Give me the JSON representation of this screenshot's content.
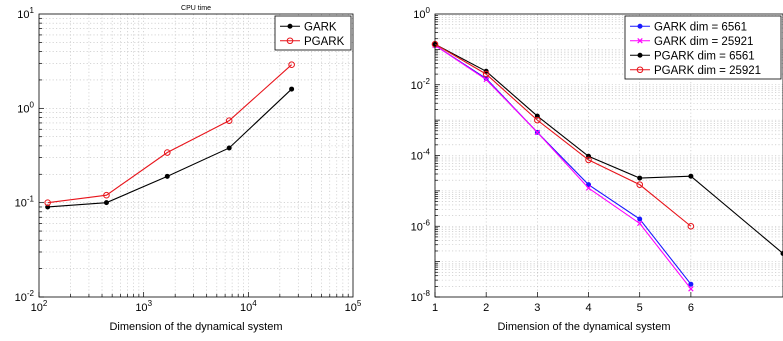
{
  "chart_data": [
    {
      "type": "line",
      "title": "CPU time",
      "xlabel": "Dimension of the dynamical system",
      "ylabel": "",
      "xscale": "log",
      "yscale": "log",
      "xlim": [
        100,
        100000
      ],
      "ylim": [
        0.01,
        10
      ],
      "grid": true,
      "legend_position": "top-right",
      "x_tick_labels": [
        {
          "base": "10",
          "exp": "2",
          "value": 100
        },
        {
          "base": "10",
          "exp": "3",
          "value": 1000
        },
        {
          "base": "10",
          "exp": "4",
          "value": 10000
        },
        {
          "base": "10",
          "exp": "5",
          "value": 100000
        }
      ],
      "y_tick_labels": [
        {
          "base": "10",
          "exp": "-2",
          "value": 0.01
        },
        {
          "base": "10",
          "exp": "-1",
          "value": 0.1
        },
        {
          "base": "10",
          "exp": "0",
          "value": 1
        },
        {
          "base": "10",
          "exp": "1",
          "value": 10
        }
      ],
      "series": [
        {
          "name": "GARK",
          "color": "#000000",
          "marker": "dot",
          "x": [
            121,
            441,
            1681,
            6561,
            25921
          ],
          "y": [
            0.09,
            0.1,
            0.19,
            0.38,
            1.6
          ]
        },
        {
          "name": "PGARK",
          "color": "#e8141b",
          "marker": "circle",
          "x": [
            121,
            441,
            1681,
            6561,
            25921
          ],
          "y": [
            0.1,
            0.12,
            0.34,
            0.74,
            2.9
          ]
        }
      ]
    },
    {
      "type": "line",
      "title": "",
      "xlabel": "Dimension of the dynamical system",
      "ylabel": "",
      "xscale": "linear",
      "yscale": "log",
      "xlim": [
        1,
        7.8
      ],
      "ylim": [
        1e-08,
        1
      ],
      "grid": true,
      "legend_position": "top-right",
      "x_tick_labels": [
        {
          "label": "1",
          "value": 1
        },
        {
          "label": "2",
          "value": 2
        },
        {
          "label": "3",
          "value": 3
        },
        {
          "label": "4",
          "value": 4
        },
        {
          "label": "5",
          "value": 5
        },
        {
          "label": "6",
          "value": 6
        }
      ],
      "y_tick_labels": [
        {
          "base": "10",
          "exp": "-8",
          "value": 1e-08
        },
        {
          "base": "10",
          "exp": "-6",
          "value": 1e-06
        },
        {
          "base": "10",
          "exp": "-4",
          "value": 0.0001
        },
        {
          "base": "10",
          "exp": "-2",
          "value": 0.01
        },
        {
          "base": "10",
          "exp": "0",
          "value": 1
        }
      ],
      "series": [
        {
          "name": "GARK dim = 6561",
          "color": "#1a1aff",
          "marker": "dot",
          "x": [
            1,
            2,
            3,
            4,
            5,
            6
          ],
          "y": [
            0.13,
            0.015,
            0.00045,
            1.5e-05,
            1.6e-06,
            2.3e-08
          ]
        },
        {
          "name": "GARK dim = 25921",
          "color": "#ff00ff",
          "marker": "x",
          "x": [
            1,
            2,
            3,
            4,
            5,
            6
          ],
          "y": [
            0.13,
            0.014,
            0.00045,
            1.2e-05,
            1.2e-06,
            1.7e-08
          ]
        },
        {
          "name": "PGARK dim = 6561",
          "color": "#000000",
          "marker": "dot",
          "x": [
            1,
            2,
            3,
            4,
            5,
            6,
            7.8
          ],
          "y": [
            0.14,
            0.024,
            0.0013,
            9.5e-05,
            2.3e-05,
            2.6e-05,
            1.7e-07
          ]
        },
        {
          "name": "PGARK dim = 25921",
          "color": "#e8141b",
          "marker": "circle",
          "x": [
            1,
            2,
            3,
            4,
            5,
            6
          ],
          "y": [
            0.14,
            0.02,
            0.001,
            7.5e-05,
            1.5e-05,
            1e-06
          ]
        }
      ]
    }
  ]
}
